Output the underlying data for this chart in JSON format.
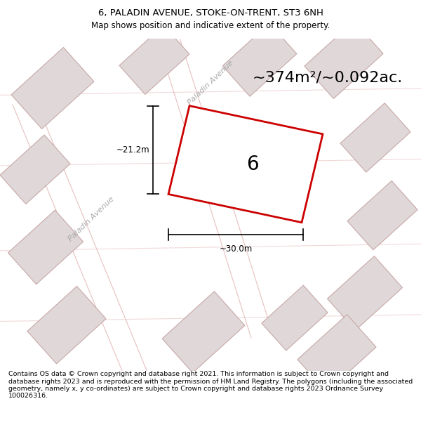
{
  "title_line1": "6, PALADIN AVENUE, STOKE-ON-TRENT, ST3 6NH",
  "title_line2": "Map shows position and indicative extent of the property.",
  "footer_text": "Contains OS data © Crown copyright and database right 2021. This information is subject to Crown copyright and database rights 2023 and is reproduced with the permission of HM Land Registry. The polygons (including the associated geometry, namely x, y co-ordinates) are subject to Crown copyright and database rights 2023 Ordnance Survey 100026316.",
  "area_label": "~374m²/~0.092ac.",
  "plot_number": "6",
  "dim_width": "~30.0m",
  "dim_height": "~21.2m",
  "bg_color": "#ffffff",
  "map_bg_color": "#f8f8f8",
  "building_face": "#e0d8d8",
  "building_edge": "#c8a8a8",
  "road_line_color": "#e8c0c0",
  "highlight_edge": "#cc0000",
  "highlight_face": "#ffffff",
  "dim_color": "#000000",
  "road_label_color": "#aaaaaa",
  "title_fontsize": 9.5,
  "subtitle_fontsize": 8.5,
  "footer_fontsize": 6.8,
  "area_fontsize": 16,
  "number_fontsize": 20,
  "dim_fontsize": 8.5,
  "road_fontsize": 8
}
